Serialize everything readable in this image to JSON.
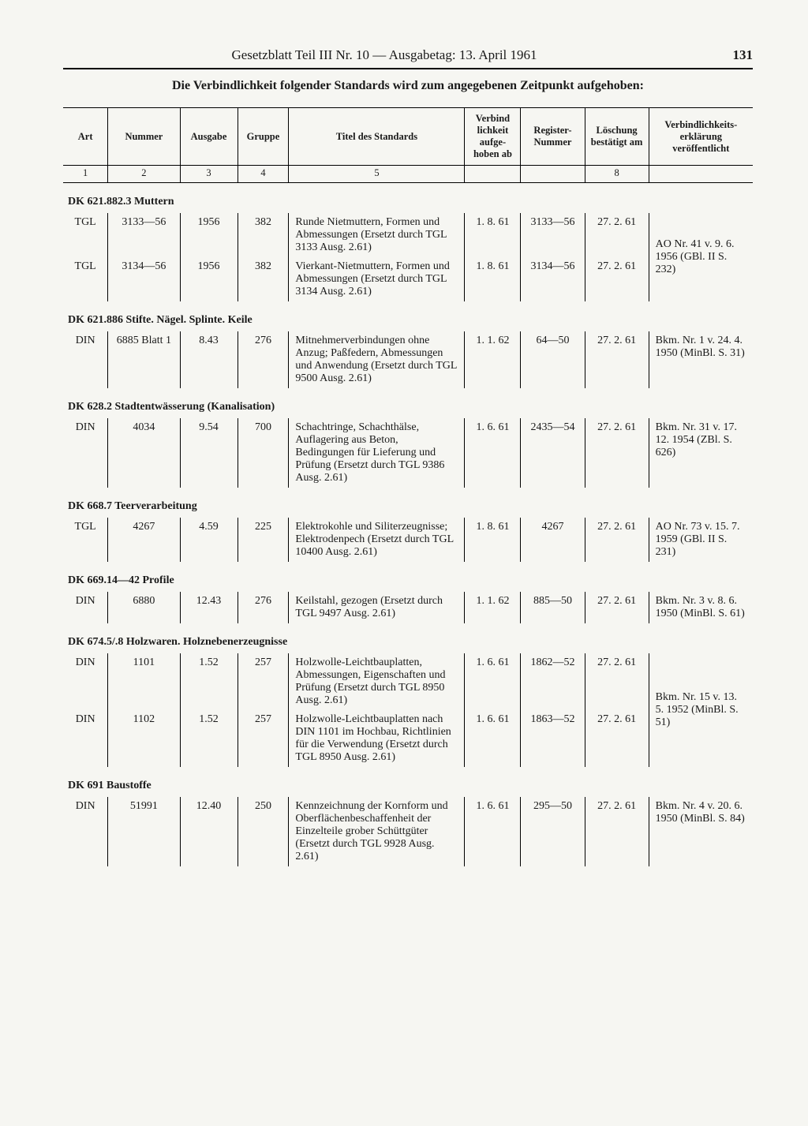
{
  "header": {
    "title": "Gesetzblatt Teil III Nr. 10 — Ausgabetag: 13. April 1961",
    "page_number": "131"
  },
  "intro": "Die Verbindlichkeit folgender Standards wird zum angegebenen Zeitpunkt aufgehoben:",
  "columns": {
    "art": "Art",
    "nummer": "Nummer",
    "ausgabe": "Ausgabe",
    "gruppe": "Gruppe",
    "titel": "Titel des Standards",
    "ab": "Verbind lichkeit aufge- hoben ab",
    "reg": "Register- Nummer",
    "del": "Löschung bestätigt am",
    "pub": "Verbindlichkeits- erklärung veröffentlicht"
  },
  "colnums": {
    "c1": "1",
    "c2": "2",
    "c3": "3",
    "c4": "4",
    "c5": "5",
    "c6": "",
    "c7": "",
    "c8": "8",
    "c9": ""
  },
  "sections": [
    {
      "heading": "DK 621.882.3 Muttern",
      "pub_shared": "AO Nr. 41 v. 9. 6. 1956 (GBl. II S. 232)",
      "rows": [
        {
          "art": "TGL",
          "num": "3133—56",
          "ausg": "1956",
          "grp": "382",
          "title": "Runde Nietmuttern, Formen und Abmessungen (Ersetzt durch TGL 3133 Ausg. 2.61)",
          "ab": "1. 8. 61",
          "reg": "3133—56",
          "del": "27. 2. 61",
          "pub": ""
        },
        {
          "art": "TGL",
          "num": "3134—56",
          "ausg": "1956",
          "grp": "382",
          "title": "Vierkant-Nietmuttern, Formen und Abmessungen (Ersetzt durch TGL 3134 Ausg. 2.61)",
          "ab": "1. 8. 61",
          "reg": "3134—56",
          "del": "27. 2. 61",
          "pub": ""
        }
      ]
    },
    {
      "heading": "DK 621.886 Stifte. Nägel. Splinte. Keile",
      "rows": [
        {
          "art": "DIN",
          "num": "6885 Blatt 1",
          "ausg": "8.43",
          "grp": "276",
          "title": "Mitnehmerverbindungen ohne Anzug; Paßfedern, Abmessungen und Anwendung (Ersetzt durch TGL 9500 Ausg. 2.61)",
          "ab": "1. 1. 62",
          "reg": "64—50",
          "del": "27. 2. 61",
          "pub": "Bkm. Nr. 1 v. 24. 4. 1950 (MinBl. S. 31)"
        }
      ]
    },
    {
      "heading": "DK 628.2 Stadtentwässerung (Kanalisation)",
      "rows": [
        {
          "art": "DIN",
          "num": "4034",
          "ausg": "9.54",
          "grp": "700",
          "title": "Schachtringe, Schachthälse, Auflagering aus Beton, Bedingungen für Lieferung und Prüfung (Ersetzt durch TGL 9386 Ausg. 2.61)",
          "ab": "1. 6. 61",
          "reg": "2435—54",
          "del": "27. 2. 61",
          "pub": "Bkm. Nr. 31 v. 17. 12. 1954 (ZBl. S. 626)"
        }
      ]
    },
    {
      "heading": "DK 668.7 Teerverarbeitung",
      "rows": [
        {
          "art": "TGL",
          "num": "4267",
          "ausg": "4.59",
          "grp": "225",
          "title": "Elektrokohle und Siliterzeugnisse; Elektrodenpech (Ersetzt durch TGL 10400 Ausg. 2.61)",
          "ab": "1. 8. 61",
          "reg": "4267",
          "del": "27. 2. 61",
          "pub": "AO Nr. 73 v. 15. 7. 1959 (GBl. II S. 231)"
        }
      ]
    },
    {
      "heading": "DK 669.14—42 Profile",
      "rows": [
        {
          "art": "DIN",
          "num": "6880",
          "ausg": "12.43",
          "grp": "276",
          "title": "Keilstahl, gezogen (Ersetzt durch TGL 9497 Ausg. 2.61)",
          "ab": "1. 1. 62",
          "reg": "885—50",
          "del": "27. 2. 61",
          "pub": "Bkm. Nr. 3 v. 8. 6. 1950 (MinBl. S. 61)"
        }
      ]
    },
    {
      "heading": "DK 674.5/.8 Holzwaren. Holznebenerzeugnisse",
      "pub_shared": "Bkm. Nr. 15 v. 13. 5. 1952 (MinBl. S. 51)",
      "rows": [
        {
          "art": "DIN",
          "num": "1101",
          "ausg": "1.52",
          "grp": "257",
          "title": "Holzwolle-Leichtbauplatten, Abmessungen, Eigenschaften und Prüfung (Ersetzt durch TGL 8950 Ausg. 2.61)",
          "ab": "1. 6. 61",
          "reg": "1862—52",
          "del": "27. 2. 61",
          "pub": ""
        },
        {
          "art": "DIN",
          "num": "1102",
          "ausg": "1.52",
          "grp": "257",
          "title": "Holzwolle-Leichtbauplatten nach DIN 1101 im Hochbau, Richtlinien für die Verwendung (Ersetzt durch TGL 8950 Ausg. 2.61)",
          "ab": "1. 6. 61",
          "reg": "1863—52",
          "del": "27. 2. 61",
          "pub": ""
        }
      ]
    },
    {
      "heading": "DK 691 Baustoffe",
      "rows": [
        {
          "art": "DIN",
          "num": "51991",
          "ausg": "12.40",
          "grp": "250",
          "title": "Kennzeichnung der Kornform und Oberflächenbeschaffenheit der Einzelteile grober Schüttgüter (Ersetzt durch TGL 9928 Ausg. 2.61)",
          "ab": "1. 6. 61",
          "reg": "295—50",
          "del": "27. 2. 61",
          "pub": "Bkm. Nr. 4 v. 20. 6. 1950 (MinBl. S. 84)"
        }
      ]
    }
  ]
}
